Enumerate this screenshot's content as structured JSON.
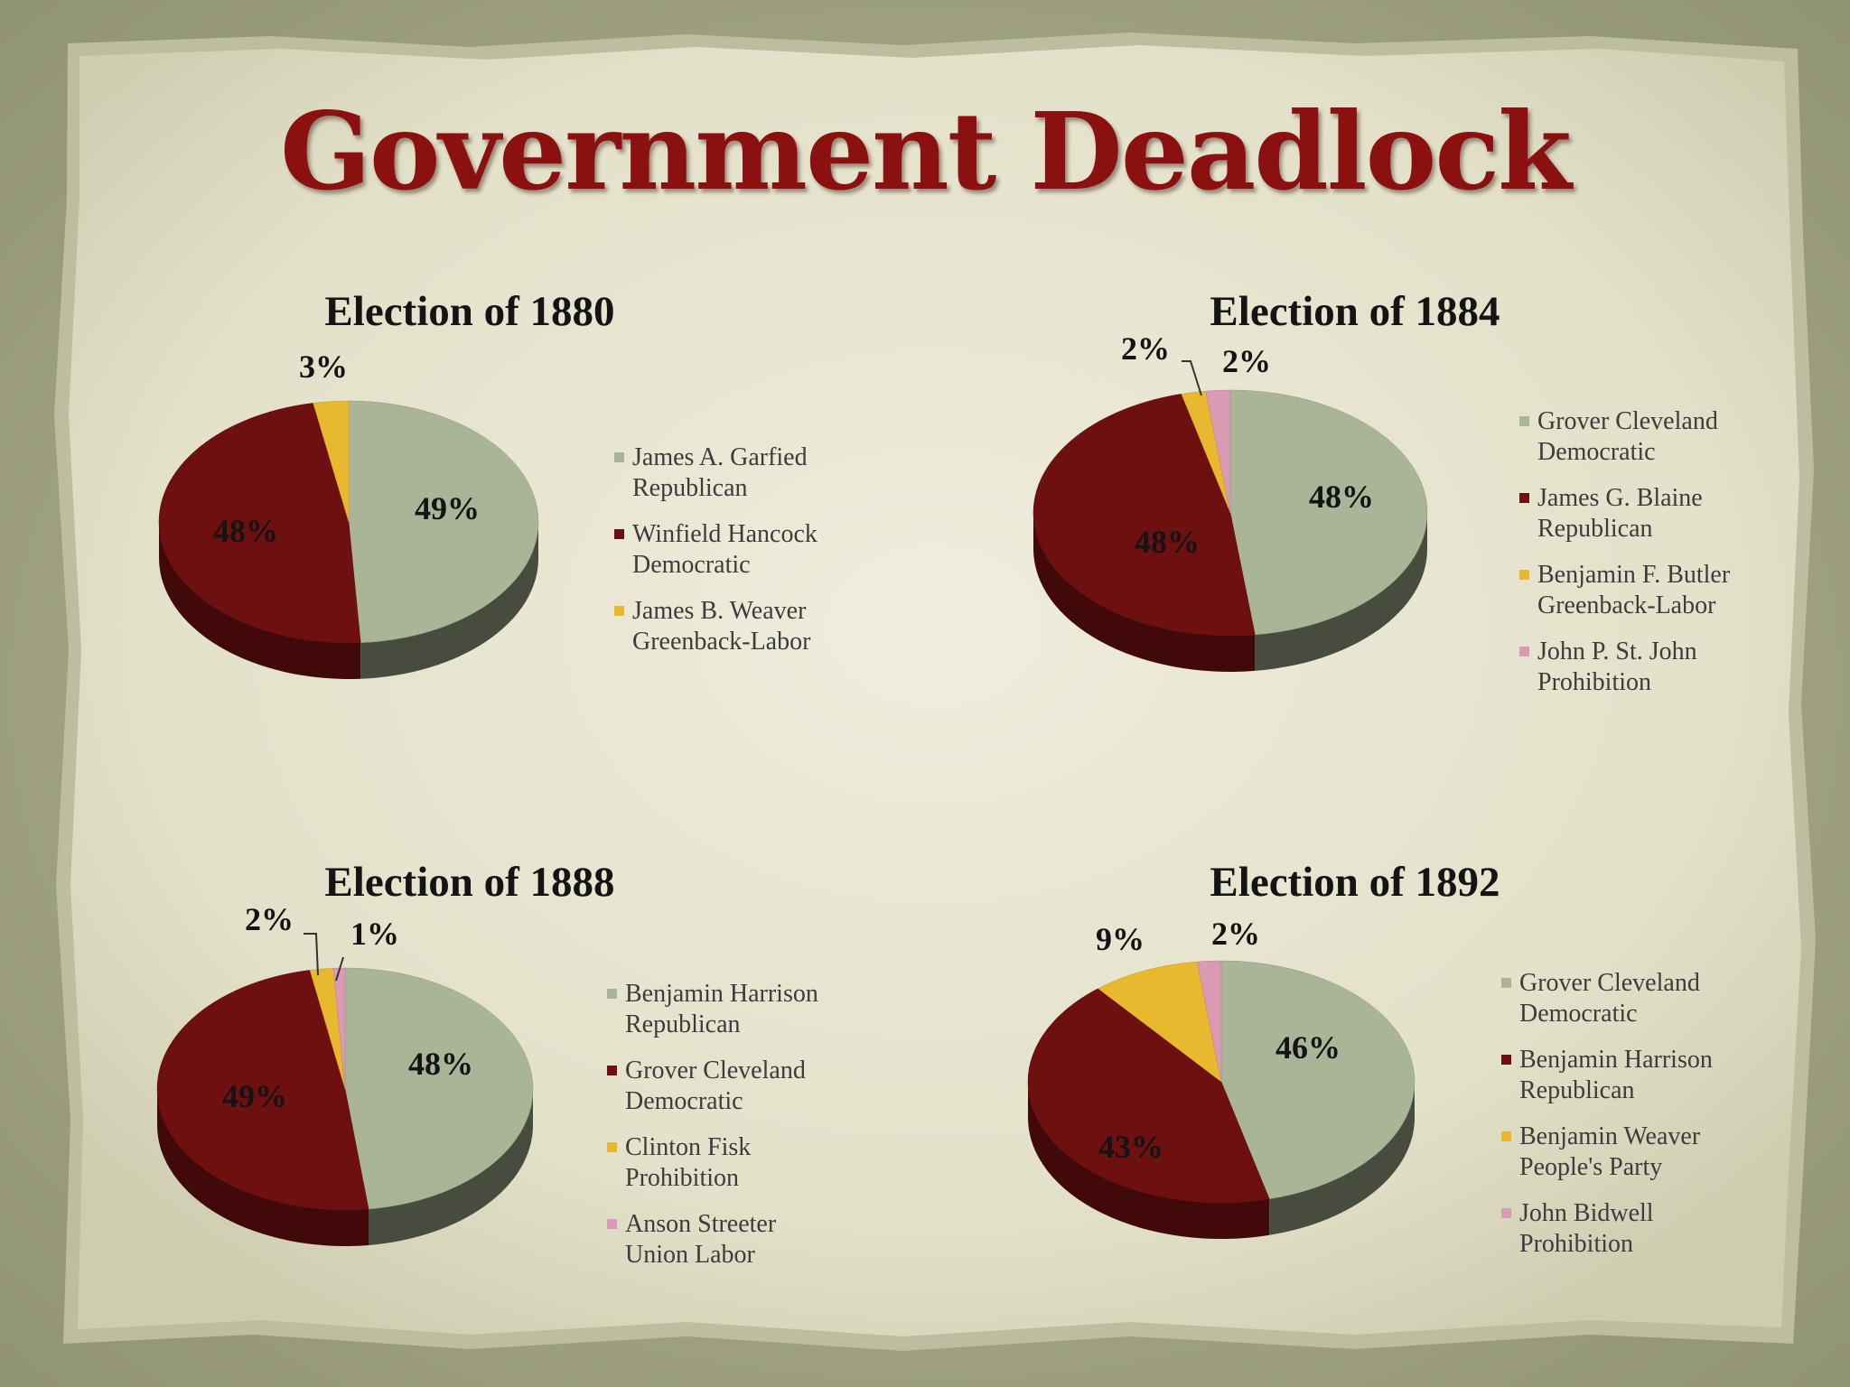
{
  "title": "Government Deadlock",
  "colors": {
    "green": "#a9b596",
    "maroon": "#6e0f10",
    "gold": "#e8b82e",
    "pink": "#d99ab4",
    "title": "#8b1010"
  },
  "chart_data": [
    {
      "type": "pie",
      "title": "Election of 1880",
      "slices": [
        {
          "name": "James A. Garfied",
          "party": "Republican",
          "value": 49,
          "label": "49%",
          "color": "#a9b596"
        },
        {
          "name": "Winfield Hancock",
          "party": "Democratic",
          "value": 48,
          "label": "48%",
          "color": "#6e0f10"
        },
        {
          "name": "James B. Weaver",
          "party": "Greenback-Labor",
          "value": 3,
          "label": "3%",
          "color": "#e8b82e"
        }
      ]
    },
    {
      "type": "pie",
      "title": "Election of 1884",
      "slices": [
        {
          "name": "Grover Cleveland",
          "party": "Democratic",
          "value": 48,
          "label": "48%",
          "color": "#a9b596"
        },
        {
          "name": "James G. Blaine",
          "party": "Republican",
          "value": 48,
          "label": "48%",
          "color": "#6e0f10"
        },
        {
          "name": "Benjamin F. Butler",
          "party": "Greenback-Labor",
          "value": 2,
          "label": "2%",
          "color": "#e8b82e"
        },
        {
          "name": "John P. St. John",
          "party": "Prohibition",
          "value": 2,
          "label": "2%",
          "color": "#d99ab4"
        }
      ]
    },
    {
      "type": "pie",
      "title": "Election of 1888",
      "slices": [
        {
          "name": "Benjamin Harrison",
          "party": "Republican",
          "value": 48,
          "label": "48%",
          "color": "#a9b596"
        },
        {
          "name": "Grover Cleveland",
          "party": "Democratic",
          "value": 49,
          "label": "49%",
          "color": "#6e0f10"
        },
        {
          "name": "Clinton Fisk",
          "party": "Prohibition",
          "value": 2,
          "label": "2%",
          "color": "#e8b82e"
        },
        {
          "name": "Anson Streeter",
          "party": "Union Labor",
          "value": 1,
          "label": "1%",
          "color": "#d99ab4"
        }
      ]
    },
    {
      "type": "pie",
      "title": "Election of 1892",
      "slices": [
        {
          "name": "Grover Cleveland",
          "party": "Democratic",
          "value": 46,
          "label": "46%",
          "color": "#a9b596"
        },
        {
          "name": "Benjamin Harrison",
          "party": "Republican",
          "value": 43,
          "label": "43%",
          "color": "#6e0f10"
        },
        {
          "name": "Benjamin Weaver",
          "party": "People's Party",
          "value": 9,
          "label": "9%",
          "color": "#e8b82e"
        },
        {
          "name": "John Bidwell",
          "party": "Prohibition",
          "value": 2,
          "label": "2%",
          "color": "#d99ab4"
        }
      ]
    }
  ]
}
